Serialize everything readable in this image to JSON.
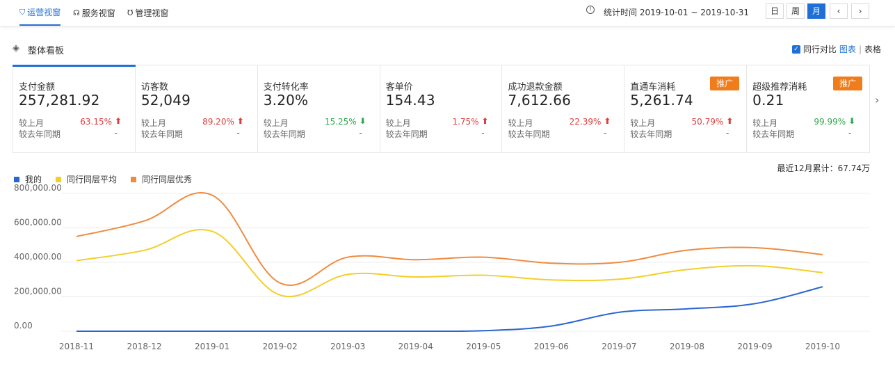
{
  "nav": {
    "tabs": [
      {
        "label": "运营视窗",
        "icon": "shield-icon",
        "active": true
      },
      {
        "label": "服务视窗",
        "icon": "headset-icon",
        "active": false
      },
      {
        "label": "管理视窗",
        "icon": "magnet-icon",
        "active": false
      }
    ],
    "stat_time": "统计时间 2019-10-01 ~ 2019-10-31",
    "periods": [
      "日",
      "周",
      "月"
    ],
    "active_period": "月"
  },
  "board": {
    "title": "整体看板",
    "compare_label": "同行对比",
    "view_chart": "图表",
    "separator": "|",
    "view_table": "表格"
  },
  "cards": [
    {
      "label": "支付金额",
      "value": "257,281.92",
      "mom_label": "较上月",
      "mom": "63.15%",
      "dir": "up",
      "yoy_label": "较去年同期",
      "yoy": "-",
      "badge": ""
    },
    {
      "label": "访客数",
      "value": "52,049",
      "mom_label": "较上月",
      "mom": "89.20%",
      "dir": "up",
      "yoy_label": "较去年同期",
      "yoy": "-",
      "badge": ""
    },
    {
      "label": "支付转化率",
      "value": "3.20%",
      "mom_label": "较上月",
      "mom": "15.25%",
      "dir": "down",
      "yoy_label": "较去年同期",
      "yoy": "-",
      "badge": ""
    },
    {
      "label": "客单价",
      "value": "154.43",
      "mom_label": "较上月",
      "mom": "1.75%",
      "dir": "up",
      "yoy_label": "较去年同期",
      "yoy": "-",
      "badge": ""
    },
    {
      "label": "成功退款金额",
      "value": "7,612.66",
      "mom_label": "较上月",
      "mom": "22.39%",
      "dir": "up",
      "yoy_label": "较去年同期",
      "yoy": "-",
      "badge": ""
    },
    {
      "label": "直通车消耗",
      "value": "5,261.74",
      "mom_label": "较上月",
      "mom": "50.79%",
      "dir": "up",
      "yoy_label": "较去年同期",
      "yoy": "-",
      "badge": "推广"
    },
    {
      "label": "超级推荐消耗",
      "value": "0.21",
      "mom_label": "较上月",
      "mom": "99.99%",
      "dir": "down",
      "yoy_label": "较去年同期",
      "yoy": "-",
      "badge": "推广"
    }
  ],
  "cumulative": "最近12月累计：67.74万",
  "colors": {
    "accent": "#1f6fd6",
    "mine": "#2a66d1",
    "avg": "#f2cf2a",
    "best": "#f08b3e",
    "up": "#e03c3c",
    "down": "#2ea84a"
  },
  "chart_data": {
    "type": "line",
    "x": [
      "2018-11",
      "2018-12",
      "2019-01",
      "2019-02",
      "2019-03",
      "2019-04",
      "2019-05",
      "2019-06",
      "2019-07",
      "2019-08",
      "2019-09",
      "2019-10"
    ],
    "ylim": [
      0,
      800000
    ],
    "yticks": [
      "0.00",
      "200,000.00",
      "400,000.00",
      "600,000.00",
      "800,000.00"
    ],
    "ytick_values": [
      0,
      200000,
      400000,
      600000,
      800000
    ],
    "grid": true,
    "legend": "top-left",
    "series": [
      {
        "name": "我的",
        "color": "#2a66d1",
        "values": [
          0,
          0,
          0,
          0,
          0,
          0,
          3000,
          30000,
          110000,
          130000,
          160000,
          258000
        ]
      },
      {
        "name": "同行同层平均",
        "color": "#f2cf2a",
        "values": [
          410000,
          470000,
          580000,
          210000,
          330000,
          315000,
          325000,
          298000,
          302000,
          358000,
          380000,
          340000
        ]
      },
      {
        "name": "同行同层优秀",
        "color": "#f08b3e",
        "values": [
          550000,
          640000,
          790000,
          280000,
          430000,
          415000,
          430000,
          395000,
          400000,
          470000,
          485000,
          445000
        ]
      }
    ]
  }
}
